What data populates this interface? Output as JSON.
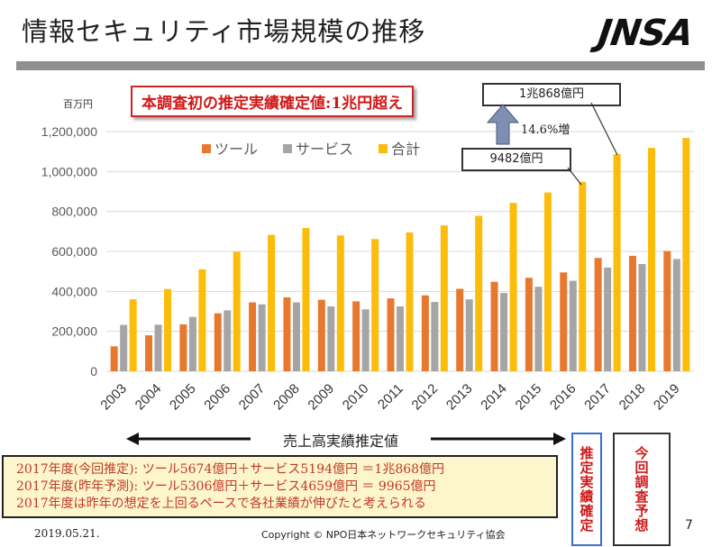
{
  "slide": {
    "title": "情報セキュリティ市場規模の推移",
    "logo": "JNSA",
    "unit_label": "百万円",
    "banner": "本調査初の推定実績確定値:1兆円超え",
    "callout_2017": "1兆868億円",
    "callout_2016": "9482億円",
    "growth_label": "14.6%増",
    "range_label": "売上高実績推定値",
    "vbox_confirmed": "推定実績確定",
    "vbox_forecast": "今回調査予想",
    "notes": [
      "2017年度(今回推定):  ツール5674億円＋サービス5194億円  ＝1兆868億円",
      "2017年度(昨年予測):  ツール5306億円＋サービス4659億円   ＝   9965億円",
      "2017年度は昨年の想定を上回るペースで各社業績が伸びたと考えられる"
    ],
    "footer_date": "2019.05.21.",
    "footer_copyright": "Copyright ©  NPO日本ネットワークセキュリティ協会",
    "page_number": "7"
  },
  "colors": {
    "tool": "#e8782d",
    "service": "#a5a5a5",
    "total": "#fcbc0a",
    "arrow": "#7f8fb3"
  },
  "chart_data": {
    "type": "bar",
    "title": "",
    "ylabel": "百万円",
    "xlabel": "",
    "ylim": [
      0,
      1200000
    ],
    "yticks": [
      "0",
      "200,000",
      "400,000",
      "600,000",
      "800,000",
      "1,000,000",
      "1,200,000"
    ],
    "grid": true,
    "legend_position": "top-left",
    "categories": [
      "2003",
      "2004",
      "2005",
      "2006",
      "2007",
      "2008",
      "2009",
      "2010",
      "2011",
      "2012",
      "2013",
      "2014",
      "2015",
      "2016",
      "2017",
      "2018",
      "2019"
    ],
    "series": [
      {
        "name": "ツール",
        "values": [
          125000,
          180000,
          235000,
          290000,
          345000,
          370000,
          358000,
          350000,
          365000,
          380000,
          413000,
          448000,
          468000,
          495000,
          567400,
          578000,
          602000
        ]
      },
      {
        "name": "サービス",
        "values": [
          232000,
          233000,
          272000,
          305000,
          335000,
          345000,
          325000,
          310000,
          325000,
          347000,
          360000,
          392000,
          423000,
          453000,
          519400,
          537000,
          562000
        ]
      },
      {
        "name": "合計",
        "values": [
          360000,
          412000,
          510000,
          598000,
          683000,
          717000,
          680000,
          662000,
          695000,
          730000,
          778000,
          843000,
          895000,
          948200,
          1086800,
          1118000,
          1168000
        ]
      }
    ]
  }
}
